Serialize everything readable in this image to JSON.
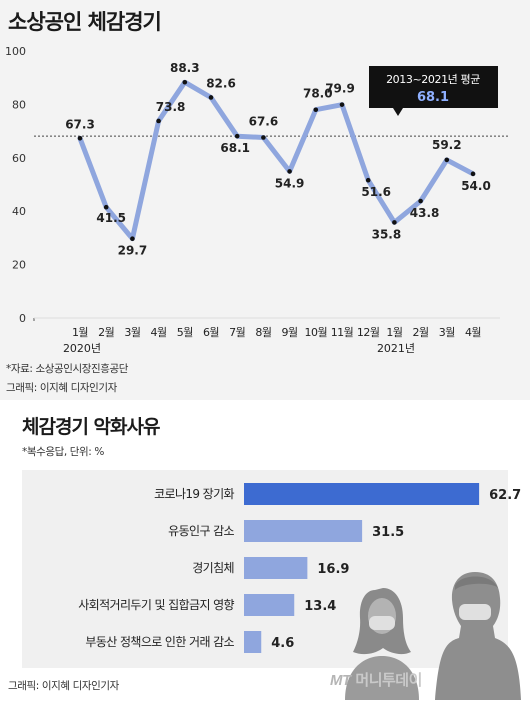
{
  "chart1": {
    "title": "소상공인 체감경기",
    "source": "*자료: 소상공인시장진흥공단",
    "credit": "그래픽: 이지혜 디자인기자",
    "avg_box": {
      "label": "2013~2021년 평균",
      "value": "68.1"
    },
    "year_labels": [
      "2020년",
      "2021년"
    ]
  },
  "chart2": {
    "title": "체감경기 악화사유",
    "note": "*복수응답, 단위: %",
    "credit": "그래픽: 이지혜 디자인기자"
  },
  "watermark": {
    "mt": "MT",
    "text": "머니투데이"
  },
  "colors": {
    "line": "#8fa6de",
    "bar_primary": "#3d6bd1",
    "bar_secondary": "#8fa6de",
    "avg_box_bg": "#111111",
    "avg_value": "#8fb0ff",
    "top_background": "#f3f3f3",
    "bar_panel_background": "#f0f0f0",
    "people": "#9b9b9b"
  },
  "chart_data": [
    {
      "type": "line",
      "title": "소상공인 체감경기",
      "categories": [
        "1월",
        "2월",
        "3월",
        "4월",
        "5월",
        "6월",
        "7월",
        "8월",
        "9월",
        "10월",
        "11월",
        "12월",
        "1월",
        "2월",
        "3월",
        "4월"
      ],
      "values": [
        67.3,
        41.5,
        29.7,
        73.8,
        88.3,
        82.6,
        68.1,
        67.6,
        54.9,
        78.0,
        79.9,
        51.6,
        35.8,
        43.8,
        59.2,
        54.0
      ],
      "value_labels": [
        "67.3",
        "41.5",
        "29.7",
        "73.8",
        "88.3",
        "82.6",
        "68.1",
        "67.6",
        "54.9",
        "78.0",
        "79.9",
        "51.6",
        "35.8",
        "43.8",
        "59.2",
        "54.0"
      ],
      "ylim": [
        0,
        100
      ],
      "yticks": [
        0,
        20,
        40,
        60,
        80,
        100
      ],
      "reference_line": {
        "value": 68.1,
        "label": "2013~2021년 평균"
      },
      "grid": false
    },
    {
      "type": "bar",
      "orientation": "horizontal",
      "title": "체감경기 악화사유",
      "categories": [
        "코로나19 장기화",
        "유동인구 감소",
        "경기침체",
        "사회적거리두기 및 집합금지 영향",
        "부동산 정책으로 인한 거래 감소"
      ],
      "values": [
        62.7,
        31.5,
        16.9,
        13.4,
        4.6
      ],
      "value_labels": [
        "62.7",
        "31.5",
        "16.9",
        "13.4",
        "4.6"
      ],
      "xlim": [
        0,
        70
      ]
    }
  ]
}
